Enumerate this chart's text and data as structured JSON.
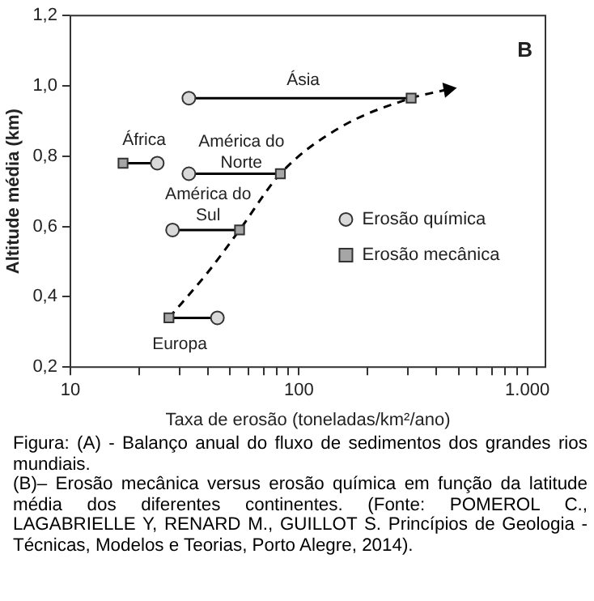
{
  "chart_data": {
    "type": "scatter",
    "xlabel": "Taxa de erosão (toneladas/km²/ano)",
    "ylabel": "Altitude média (km)",
    "log": "x",
    "grid": false,
    "legend": "right",
    "marker": "circle",
    "xlim": [
      10,
      1200
    ],
    "ylim": [
      0.2,
      1.2
    ],
    "xticks": [
      10,
      {
        "value": 20,
        "label": null
      },
      {
        "value": 30,
        "label": null
      },
      {
        "value": 40,
        "label": null
      },
      {
        "value": 50,
        "label": null
      },
      {
        "value": 60,
        "label": null
      },
      {
        "value": 70,
        "label": null
      },
      {
        "value": 80,
        "label": null
      },
      {
        "value": 90,
        "label": null
      },
      100,
      {
        "value": 200,
        "label": null
      },
      {
        "value": 300,
        "label": null
      },
      {
        "value": 400,
        "label": null
      },
      {
        "value": 500,
        "label": null
      },
      {
        "value": 600,
        "label": null
      },
      {
        "value": 700,
        "label": null
      },
      {
        "value": 800,
        "label": null
      },
      {
        "value": 900,
        "label": null
      },
      {
        "value": 1000,
        "label": "1.000"
      }
    ],
    "yticks": [
      {
        "value": 0.2,
        "label": "0,2"
      },
      {
        "value": 0.4,
        "label": "0,4"
      },
      {
        "value": 0.6,
        "label": "0,6"
      },
      {
        "value": 0.8,
        "label": "0,8"
      },
      {
        "value": 1.0,
        "label": "1,0"
      },
      {
        "value": 1.2,
        "label": "1,2"
      }
    ],
    "series": [
      {
        "type": "line",
        "color": "#000000",
        "marker": "none",
        "x": [
          33,
          310
        ],
        "values": [
          0.965,
          0.965
        ]
      },
      {
        "type": "line",
        "color": "#000000",
        "marker": "none",
        "x": [
          17,
          24
        ],
        "values": [
          0.78,
          0.78
        ]
      },
      {
        "type": "line",
        "color": "#000000",
        "marker": "none",
        "x": [
          33,
          83
        ],
        "values": [
          0.75,
          0.75
        ]
      },
      {
        "type": "line",
        "color": "#000000",
        "marker": "none",
        "x": [
          28,
          55
        ],
        "values": [
          0.59,
          0.59
        ]
      },
      {
        "type": "line",
        "color": "#000000",
        "marker": "none",
        "x": [
          27,
          44
        ],
        "values": [
          0.34,
          0.34
        ]
      },
      {
        "type": "line",
        "color": "#000000",
        "marker": "none",
        "line_style": "dashed",
        "x": [
          27,
          40,
          55,
          83,
          150,
          310,
          450
        ],
        "values": [
          0.34,
          0.47,
          0.59,
          0.75,
          0.88,
          0.965,
          0.99
        ]
      },
      {
        "name": "Erosão química",
        "color": "#d9d9d9",
        "x": [
          33,
          24,
          33,
          28,
          44
        ],
        "values": [
          0.965,
          0.78,
          0.75,
          0.59,
          0.34
        ]
      },
      {
        "name": "Erosão mecânica",
        "marker": "square",
        "color": "#a6a6a6",
        "x": [
          310,
          17,
          83,
          55,
          27
        ],
        "values": [
          0.965,
          0.78,
          0.75,
          0.59,
          0.34
        ]
      }
    ],
    "annotations": [
      "Ásia",
      "África",
      "América do\nNorte",
      "América do\nSul",
      "Europa",
      "B",
      "Figura: (A) - Balanço anual do fluxo de sedimentos dos grandes rios mundiais.",
      "(B)– Erosão mecânica versus erosão química em função da latitude média dos diferentes continentes. (Fonte: POMEROL C., LAGABRIELLE Y, RENARD M., GUILLOT S. Princípios de Geologia - Técnicas, Modelos e Teorias, Porto Alegre, 2014)."
    ]
  }
}
